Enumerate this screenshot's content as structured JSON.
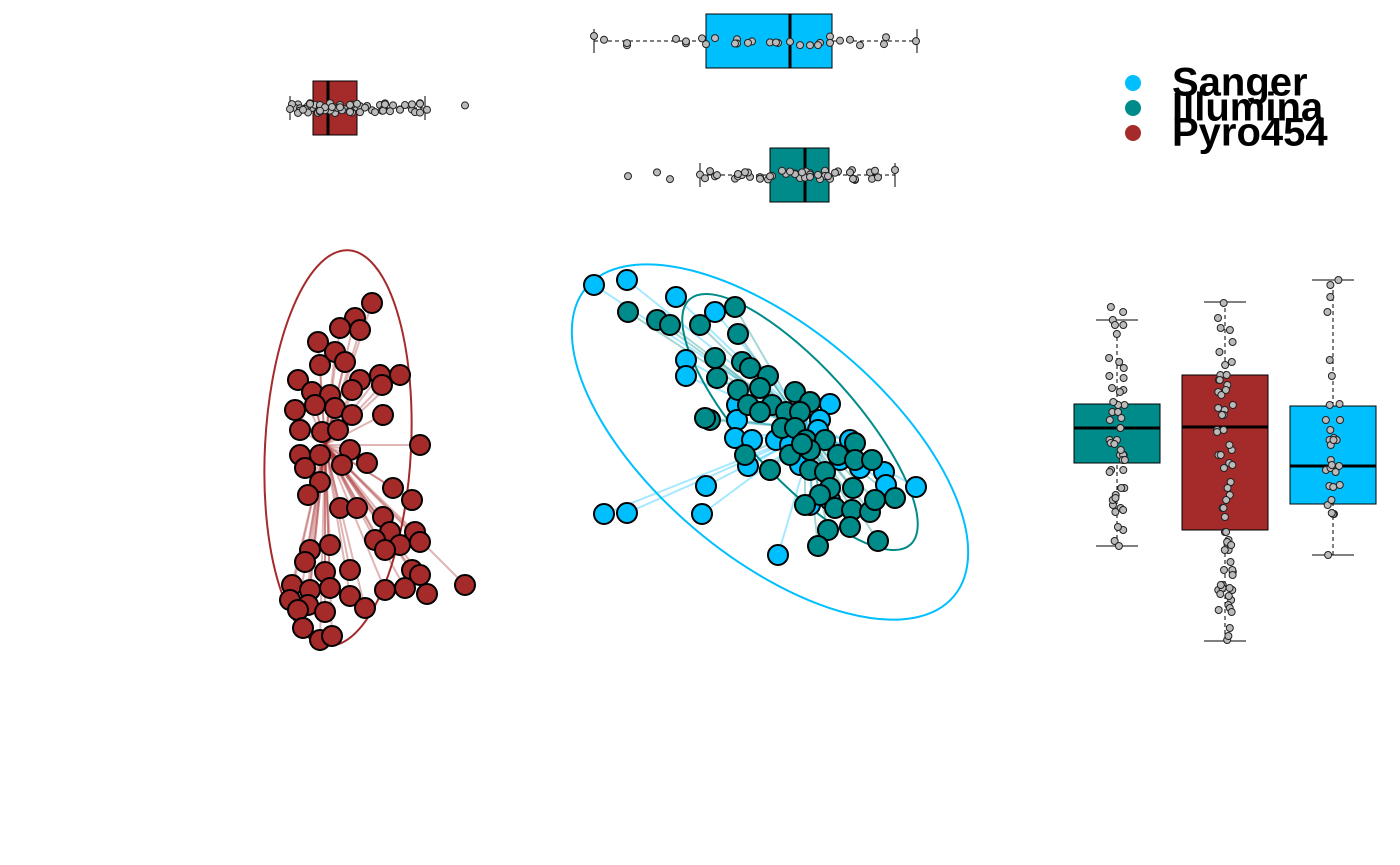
{
  "chart_data": {
    "type": "scatter",
    "xlim": [
      0,
      700
    ],
    "ylim": [
      0,
      400
    ],
    "legend": "top-right",
    "series": [
      {
        "name": "Sanger",
        "color": "#00BFFF",
        "x": [
          334,
          367,
          416,
          455,
          426,
          426,
          477,
          477,
          475,
          492,
          488,
          510,
          446,
          442,
          344,
          367,
          518,
          570,
          560,
          580,
          600,
          624,
          626,
          656,
          550,
          570,
          516,
          530,
          540,
          558,
          590
        ],
        "y": [
          375,
          380,
          363,
          348,
          300,
          284,
          255,
          240,
          222,
          220,
          194,
          190,
          174,
          146,
          146,
          147,
          105,
          256,
          240,
          200,
          192,
          188,
          175,
          173,
          155,
          160,
          220,
          215,
          195,
          230,
          220
        ],
        "centroid": [
          555,
          230
        ],
        "ellipse": {
          "cx": 510,
          "cy": 218,
          "rx": 240,
          "ry": 115,
          "angle": -40
        },
        "xbox": {
          "min": 334,
          "q1": 446,
          "median": 530,
          "q3": 572,
          "max": 657
        },
        "ybox": {
          "min": 105,
          "q1": 156,
          "median": 194,
          "q3": 254,
          "max": 380
        }
      },
      {
        "name": "Illumina",
        "color": "#008B8B",
        "x": [
          368,
          397,
          410,
          440,
          475,
          478,
          455,
          457,
          482,
          490,
          508,
          478,
          500,
          488,
          512,
          535,
          550,
          526,
          540,
          500,
          450,
          445,
          522,
          535,
          546,
          565,
          595,
          485,
          510,
          530,
          550,
          565,
          578,
          595,
          612,
          593,
          570,
          560,
          545,
          575,
          592,
          610,
          615,
          635,
          568,
          590,
          618,
          558,
          550,
          542
        ],
        "y": [
          348,
          340,
          335,
          335,
          353,
          326,
          302,
          282,
          298,
          292,
          284,
          270,
          272,
          255,
          255,
          268,
          258,
          248,
          248,
          248,
          240,
          242,
          232,
          232,
          220,
          220,
          217,
          205,
          190,
          205,
          190,
          188,
          205,
          200,
          200,
          172,
          172,
          165,
          155,
          152,
          150,
          148,
          160,
          162,
          130,
          133,
          119,
          114,
          210,
          216
        ],
        "centroid": [
          545,
          232
        ],
        "ellipse": {
          "cx": 540,
          "cy": 238,
          "rx": 165,
          "ry": 55,
          "angle": -48
        },
        "xbox": {
          "min": 440,
          "q1": 510,
          "median": 545,
          "q3": 569,
          "max": 635
        },
        "ybox": {
          "min": 114,
          "q1": 197,
          "median": 232,
          "q3": 256,
          "max": 340
        }
      },
      {
        "name": "Pyro454",
        "color": "#A52A2A",
        "x": [
          112,
          95,
          80,
          100,
          58,
          75,
          85,
          60,
          100,
          120,
          140,
          38,
          52,
          70,
          122,
          92,
          35,
          55,
          75,
          92,
          123,
          40,
          62,
          78,
          40,
          60,
          90,
          160,
          107,
          45,
          60,
          82,
          48,
          133,
          152,
          80,
          97,
          123,
          130,
          155,
          115,
          140,
          160,
          50,
          70,
          45,
          65,
          90,
          125,
          152,
          160,
          32,
          50,
          70,
          30,
          48,
          90,
          125,
          145,
          167,
          205,
          105,
          38,
          65,
          43,
          60,
          72
        ],
        "y": [
          357,
          342,
          332,
          330,
          318,
          308,
          298,
          295,
          280,
          285,
          285,
          280,
          268,
          265,
          275,
          270,
          250,
          255,
          252,
          245,
          245,
          230,
          228,
          230,
          205,
          205,
          210,
          215,
          197,
          192,
          178,
          195,
          165,
          172,
          160,
          152,
          152,
          143,
          128,
          128,
          120,
          115,
          118,
          110,
          115,
          98,
          88,
          90,
          110,
          90,
          85,
          75,
          70,
          72,
          60,
          55,
          64,
          70,
          72,
          66,
          75,
          52,
          50,
          48,
          32,
          20,
          24
        ],
        "centroid": [
          65,
          215
        ],
        "ellipse": {
          "cx": 78,
          "cy": 212,
          "rx": 73,
          "ry": 198,
          "angle": -3
        },
        "xbox": {
          "min": 30,
          "q1": 53,
          "median": 68,
          "q3": 97,
          "max": 165
        },
        "ybox": {
          "min": 19,
          "q1": 130,
          "median": 233,
          "q3": 285,
          "max": 358
        }
      }
    ]
  }
}
